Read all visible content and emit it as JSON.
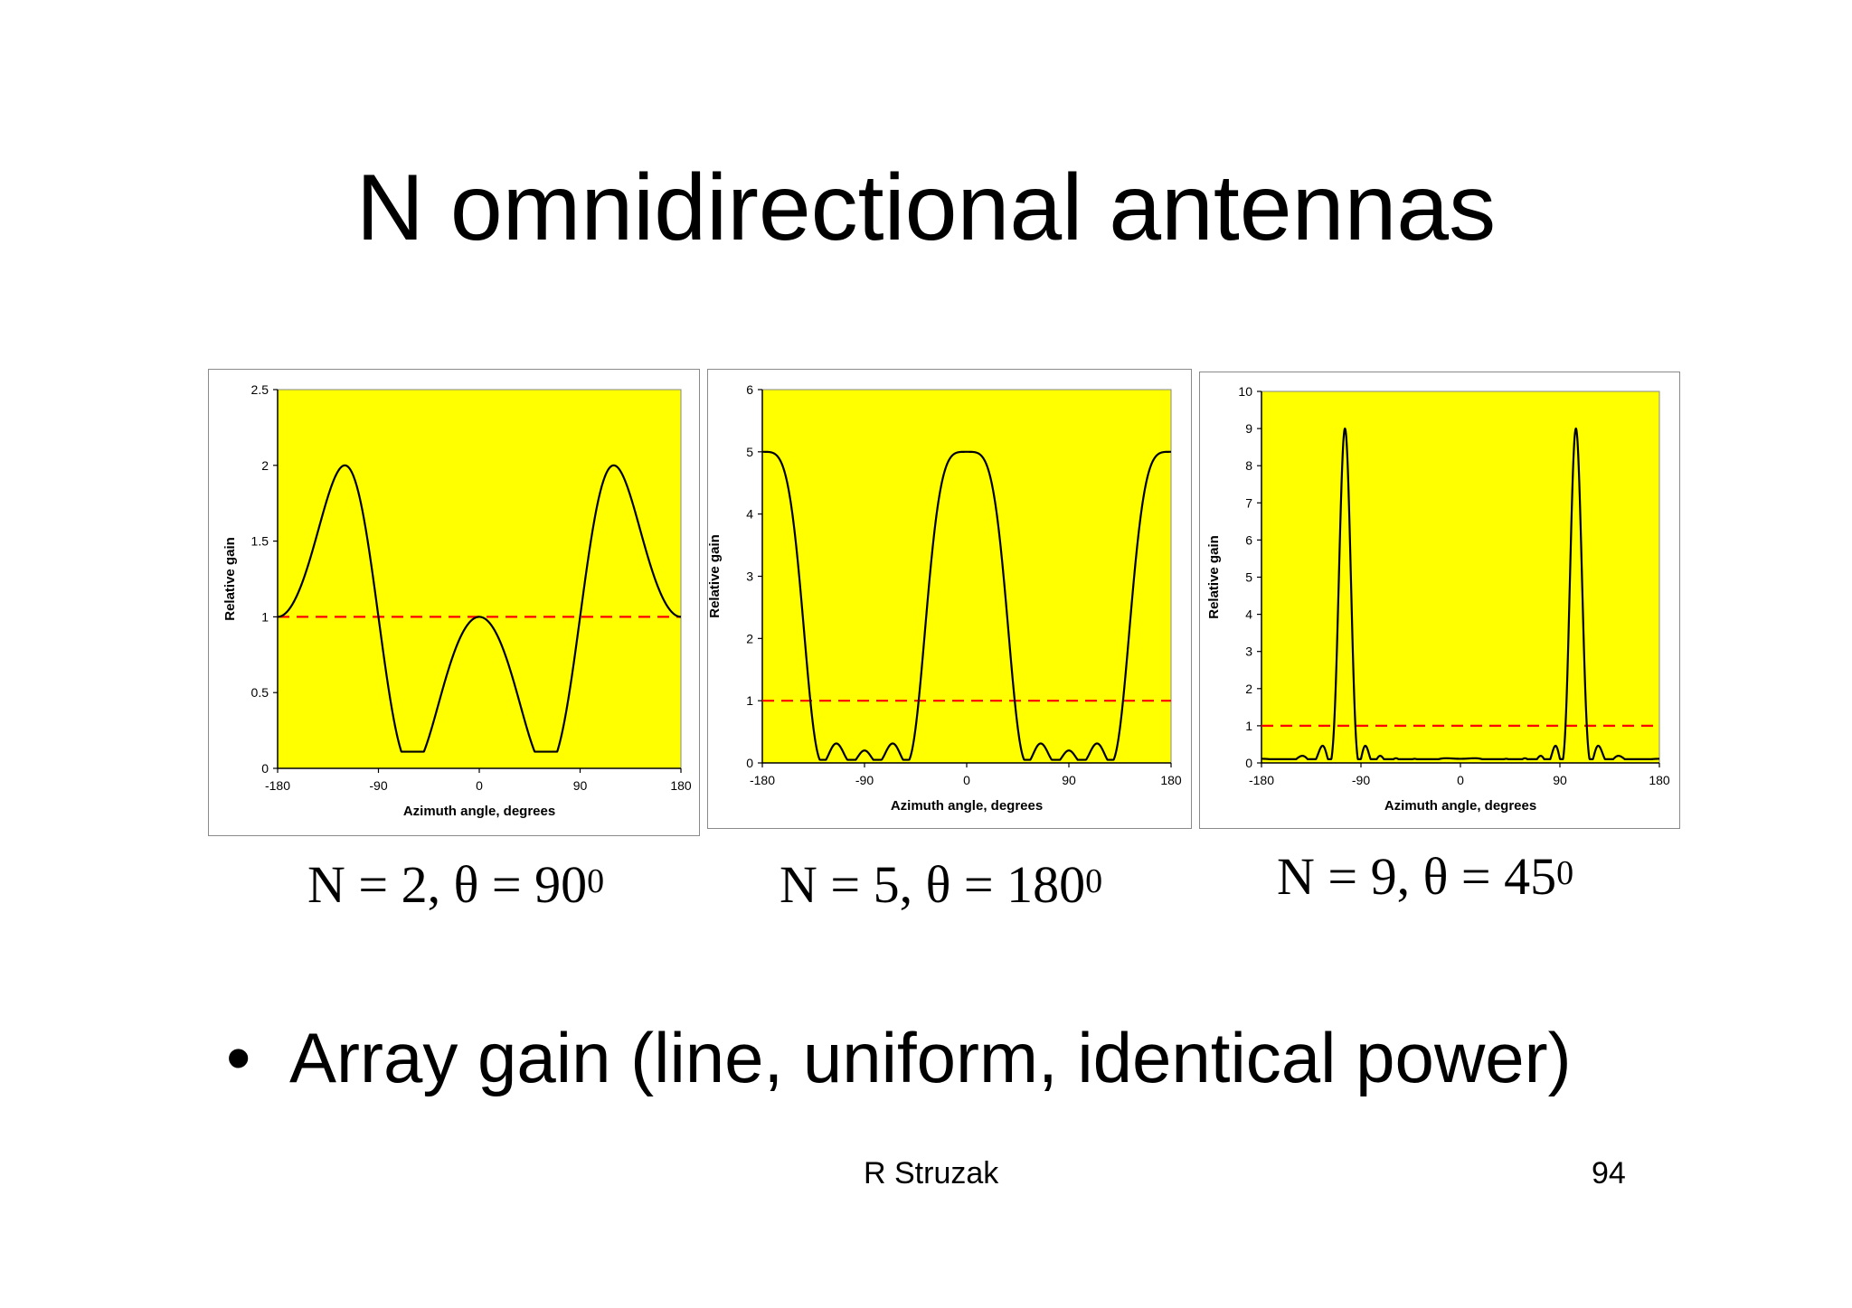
{
  "slide": {
    "title": "N omnidirectional antennas",
    "bullet": "Array gain (line, uniform, identical power)",
    "author": "R Struzak",
    "page_number": "94"
  },
  "colors": {
    "plot_background": "#ffff00",
    "curve": "#000000",
    "reference_line": "#ff0000"
  },
  "chart_data": [
    {
      "type": "line",
      "n_elements": 2,
      "theta_deg": 90,
      "caption": {
        "prefix": "N = 2, θ = 90",
        "sup": "0"
      },
      "xlabel": "Azimuth angle, degrees",
      "ylabel": "Relative gain",
      "xlim": [
        -180,
        180
      ],
      "ylim": [
        0,
        2.5
      ],
      "xticks": [
        "-180",
        "-90",
        "0",
        "90",
        "180"
      ],
      "yticks": [
        "0",
        "0.5",
        "1",
        "1.5",
        "2",
        "2.5"
      ],
      "reference_y": 1,
      "curve_min": 0.11
    },
    {
      "type": "line",
      "n_elements": 5,
      "theta_deg": 180,
      "caption": {
        "prefix": "N = 5, θ = 180",
        "sup": "0"
      },
      "xlabel": "Azimuth angle, degrees",
      "ylabel": "Relative gain",
      "xlim": [
        -180,
        180
      ],
      "ylim": [
        0,
        6
      ],
      "xticks": [
        "-180",
        "-90",
        "0",
        "90",
        "180"
      ],
      "yticks": [
        "0",
        "1",
        "2",
        "3",
        "4",
        "5",
        "6"
      ],
      "reference_y": 1,
      "curve_min": 0.05
    },
    {
      "type": "line",
      "n_elements": 9,
      "theta_deg": 45,
      "caption": {
        "prefix": "N = 9, θ = 45",
        "sup": "0"
      },
      "xlabel": "Azimuth angle, degrees",
      "ylabel": "Relative gain",
      "xlim": [
        -180,
        180
      ],
      "ylim": [
        0,
        10
      ],
      "xticks": [
        "-180",
        "-90",
        "0",
        "90",
        "180"
      ],
      "yticks": [
        "0",
        "1",
        "2",
        "3",
        "4",
        "5",
        "6",
        "7",
        "8",
        "9",
        "10"
      ],
      "reference_y": 1,
      "curve_min": 0.1
    }
  ]
}
